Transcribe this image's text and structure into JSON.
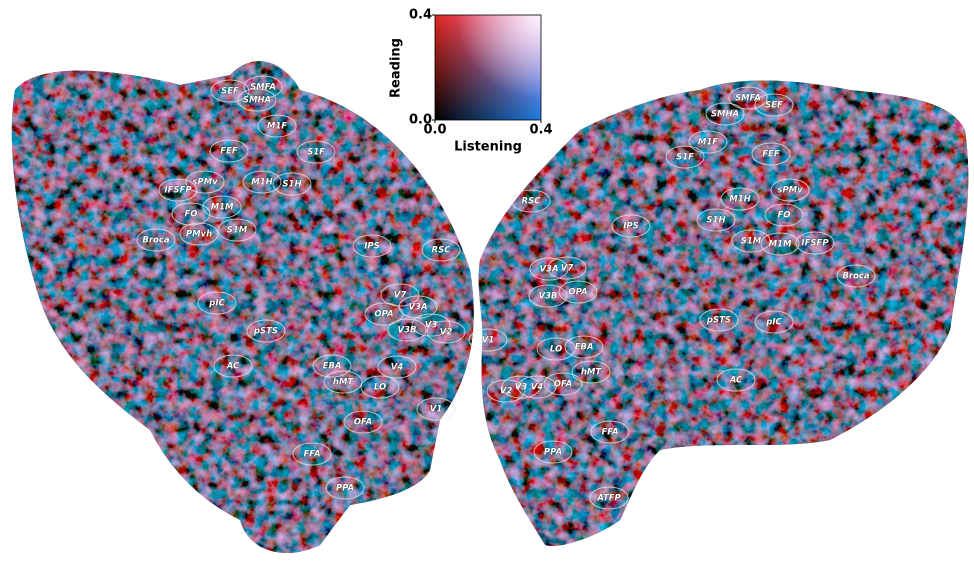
{
  "colorbar": {
    "xlabel": "Listening",
    "ylabel": "Reading",
    "xlim": [
      0,
      0.4
    ],
    "ylim": [
      0,
      0.4
    ],
    "xticks": [
      {
        "value": 0,
        "label": "0.0"
      },
      {
        "value": 0.4,
        "label": "0.4"
      }
    ],
    "yticks": [
      {
        "value": 0,
        "label": "0.0"
      },
      {
        "value": 0.4,
        "label": "0.4"
      }
    ]
  },
  "left_hemisphere": {
    "regions": [
      "SMFA",
      "SEF",
      "SMHA",
      "M1F",
      "S1F",
      "FEF",
      "sPMv",
      "IFSFP",
      "M1H",
      "S1H",
      "M1M",
      "FO",
      "Broca",
      "PMvh",
      "S1M",
      "IPS",
      "RSC",
      "V7",
      "V3A",
      "OPA",
      "V3B",
      "V3",
      "V2",
      "pIC",
      "pSTS",
      "AC",
      "EBA",
      "hMT",
      "V4",
      "LO",
      "V1",
      "OFA",
      "FFA",
      "PPA"
    ]
  },
  "right_hemisphere": {
    "regions": [
      "RSC",
      "IPS",
      "SMFA",
      "SEF",
      "SMHA",
      "M1F",
      "S1F",
      "FEF",
      "sPMv",
      "M1H",
      "FO",
      "S1H",
      "M1M",
      "S1M",
      "IFSFP",
      "Broca",
      "V3A",
      "V7",
      "V3B",
      "OPA",
      "pSTS",
      "pIC",
      "V1",
      "LO",
      "EBA",
      "hMT",
      "AC",
      "V2",
      "V3",
      "V4",
      "OFA",
      "FFA",
      "PPA",
      "ATFP"
    ]
  }
}
